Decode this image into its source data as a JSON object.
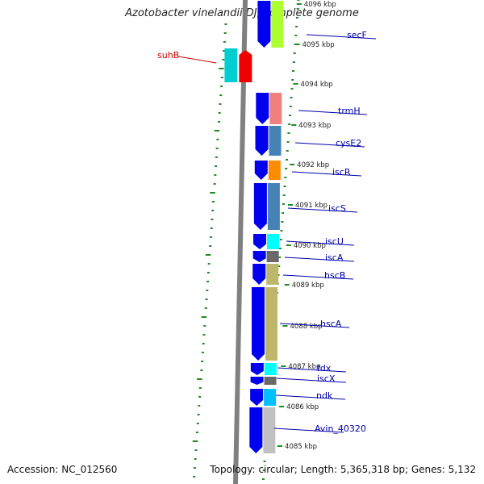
{
  "title": "Azotobacter vinelandii DJ, complete genome",
  "footer": {
    "accession": "Accession: NC_012560",
    "topology": "Topology: circular; Length: 5,365,318 bp; Genes: 5,132"
  },
  "colors": {
    "background": "#ffffff",
    "backbone": "#808080",
    "cds_strand": "#0000ee",
    "gene_label": "#0000aa",
    "rna_label": "#cc0000",
    "tick": "#228b22",
    "tick_label": "#222222"
  },
  "ticks": [
    "4096 kbp",
    "4095 kbp",
    "4094 kbp",
    "4093 kbp",
    "4092 kbp",
    "4091 kbp",
    "4090 kbp",
    "4089 kbp",
    "4088 kbp",
    "4087 kbp",
    "4086 kbp",
    "4085 kbp"
  ],
  "genes": [
    {
      "name": "secF",
      "color": "#adff2f"
    },
    {
      "name": "suhB",
      "color": "#00ced1",
      "rna_color": "#ee0000"
    },
    {
      "name": "trmH",
      "color": "#f08080"
    },
    {
      "name": "cysE2",
      "color": "#4682b4"
    },
    {
      "name": "iscR",
      "color": "#ff8c00"
    },
    {
      "name": "iscS",
      "color": "#4682b4"
    },
    {
      "name": "iscU",
      "color": "#00ffff"
    },
    {
      "name": "iscA",
      "color": "#696969"
    },
    {
      "name": "hscB",
      "color": "#bdb76b"
    },
    {
      "name": "hscA",
      "color": "#bdb76b"
    },
    {
      "name": "fdx",
      "color": "#00ffff"
    },
    {
      "name": "iscX",
      "color": "#696969"
    },
    {
      "name": "ndk",
      "color": "#00bfff"
    },
    {
      "name": "Avin_40320",
      "color": "#c0c0c0"
    }
  ]
}
